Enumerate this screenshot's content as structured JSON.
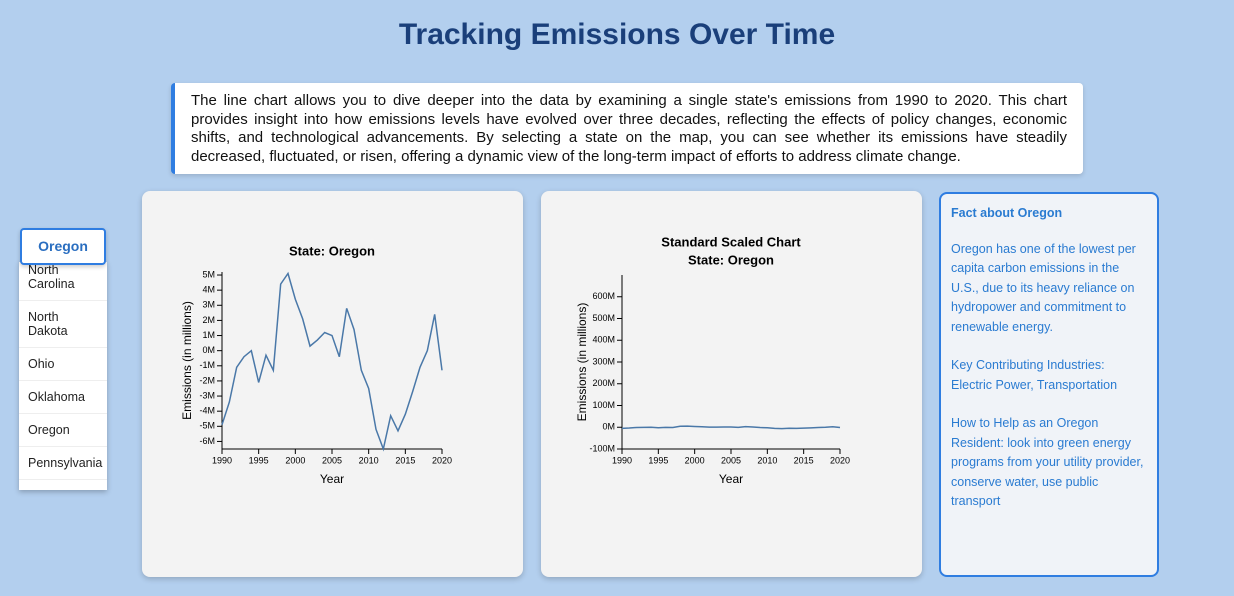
{
  "header": {
    "title": "Tracking Emissions Over Time"
  },
  "description": "The line chart allows you to dive deeper into the data by examining a single state's emissions from 1990 to 2020. This chart provides insight into how emissions levels have evolved over three decades, reflecting the effects of policy changes, economic shifts, and technological advancements. By selecting a state on the map, you can see whether its emissions have steadily decreased, fluctuated, or risen, offering a dynamic view of the long-term impact of efforts to address climate change.",
  "dropdown": {
    "selected": "Oregon",
    "options": [
      "North Carolina",
      "North Dakota",
      "Ohio",
      "Oklahoma",
      "Oregon",
      "Pennsylvania"
    ]
  },
  "chart_data": [
    {
      "type": "line",
      "title": "State: Oregon",
      "x_label": "Year",
      "y_label": "Emissions (in millions)",
      "color": "#4a78a8",
      "x": [
        1990,
        1991,
        1992,
        1993,
        1994,
        1995,
        1996,
        1997,
        1998,
        1999,
        2000,
        2001,
        2002,
        2003,
        2004,
        2005,
        2006,
        2007,
        2008,
        2009,
        2010,
        2011,
        2012,
        2013,
        2014,
        2015,
        2016,
        2017,
        2018,
        2019,
        2020
      ],
      "values": [
        -4.9,
        -3.4,
        -1.1,
        -0.4,
        0,
        -2.1,
        -0.3,
        -1.3,
        4.4,
        5.1,
        3.4,
        2.1,
        0.3,
        0.7,
        1.2,
        1.0,
        -0.4,
        2.8,
        1.4,
        -1.3,
        -2.5,
        -5.2,
        -6.5,
        -4.3,
        -5.3,
        -4.2,
        -2.7,
        -1.1,
        0,
        2.4,
        -1.3
      ],
      "xlim": [
        1990,
        2020
      ],
      "xticks": [
        1990,
        1995,
        2000,
        2005,
        2010,
        2015,
        2020
      ],
      "ylim": [
        -6.5,
        5.2
      ],
      "yticks": [
        {
          "value": -6,
          "label": "-6M"
        },
        {
          "value": -5,
          "label": "-5M"
        },
        {
          "value": -4,
          "label": "-4M"
        },
        {
          "value": -3,
          "label": "-3M"
        },
        {
          "value": -2,
          "label": "-2M"
        },
        {
          "value": -1,
          "label": "-1M"
        },
        {
          "value": 0,
          "label": "0M"
        },
        {
          "value": 1,
          "label": "1M"
        },
        {
          "value": 2,
          "label": "2M"
        },
        {
          "value": 3,
          "label": "3M"
        },
        {
          "value": 4,
          "label": "4M"
        },
        {
          "value": 5,
          "label": "5M"
        }
      ]
    },
    {
      "type": "line",
      "title": "Standard Scaled Chart",
      "subtitle": "State: Oregon",
      "x_label": "Year",
      "y_label": "Emissions (in millions)",
      "color": "#4a78a8",
      "x": [
        1990,
        1991,
        1992,
        1993,
        1994,
        1995,
        1996,
        1997,
        1998,
        1999,
        2000,
        2001,
        2002,
        2003,
        2004,
        2005,
        2006,
        2007,
        2008,
        2009,
        2010,
        2011,
        2012,
        2013,
        2014,
        2015,
        2016,
        2017,
        2018,
        2019,
        2020
      ],
      "values": [
        -4.9,
        -3.4,
        -1.1,
        -0.4,
        0,
        -2.1,
        -0.3,
        -1.3,
        4.4,
        5.1,
        3.4,
        2.1,
        0.3,
        0.7,
        1.2,
        1.0,
        -0.4,
        2.8,
        1.4,
        -1.3,
        -2.5,
        -5.2,
        -6.5,
        -4.3,
        -5.3,
        -4.2,
        -2.7,
        -1.1,
        0,
        2.4,
        -1.3
      ],
      "xlim": [
        1990,
        2020
      ],
      "xticks": [
        1990,
        1995,
        2000,
        2005,
        2010,
        2015,
        2020
      ],
      "ylim": [
        -100,
        700
      ],
      "yticks": [
        {
          "value": -100,
          "label": "-100M"
        },
        {
          "value": 0,
          "label": "0M"
        },
        {
          "value": 100,
          "label": "100M"
        },
        {
          "value": 200,
          "label": "200M"
        },
        {
          "value": 300,
          "label": "300M"
        },
        {
          "value": 400,
          "label": "400M"
        },
        {
          "value": 500,
          "label": "500M"
        },
        {
          "value": 600,
          "label": "600M"
        }
      ]
    }
  ],
  "fact": {
    "title": "Fact about Oregon",
    "paragraphs": [
      "Oregon has one of the lowest per capita carbon emissions in the U.S., due to its heavy reliance on hydropower and commitment to renewable energy.",
      "Key Contributing Industries: Electric Power, Transportation",
      "How to Help as an Oregon Resident: look into green energy programs from your utility provider, conserve water, use public transport"
    ]
  }
}
